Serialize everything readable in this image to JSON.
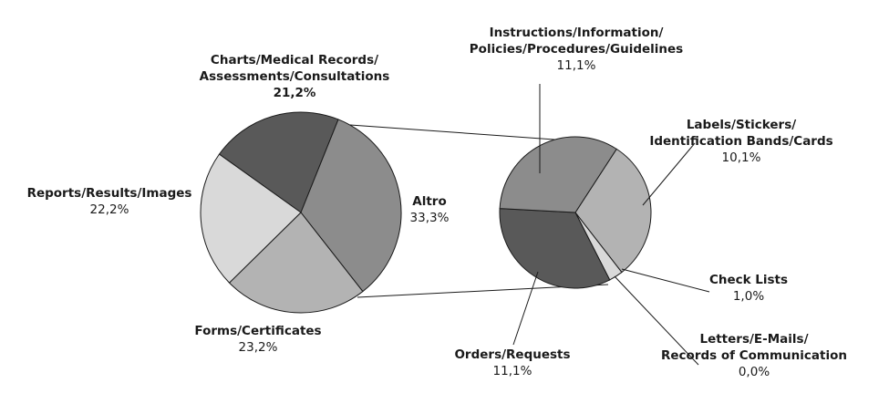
{
  "chart_data": [
    {
      "type": "pie",
      "title": "",
      "slices": [
        {
          "label_lines": [
            "Charts/Medical Records/",
            "Assessments/Consultations"
          ],
          "value_label": "21,2%",
          "value": 21.2,
          "color": "#595959"
        },
        {
          "label_lines": [
            "Altro"
          ],
          "value_label": "33,3%",
          "value": 33.3,
          "color": "#8c8c8c"
        },
        {
          "label_lines": [
            "Forms/Certificates"
          ],
          "value_label": "23,2%",
          "value": 23.2,
          "color": "#b3b3b3"
        },
        {
          "label_lines": [
            "Reports/Results/Images"
          ],
          "value_label": "22,2%",
          "value": 22.2,
          "color": "#d9d9d9"
        }
      ]
    },
    {
      "type": "pie",
      "title": "",
      "breakdown_of": "Altro",
      "slices": [
        {
          "label_lines": [
            "Labels/Stickers/",
            "Identification Bands/Cards"
          ],
          "value_label": "10,1%",
          "value": 10.1,
          "color": "#b3b3b3"
        },
        {
          "label_lines": [
            "Check Lists"
          ],
          "value_label": "1,0%",
          "value": 1.0,
          "color": "#d9d9d9"
        },
        {
          "label_lines": [
            "Letters/E-Mails/",
            "Records of Communication"
          ],
          "value_label": "0,0%",
          "value": 0.0,
          "color": "#ffffff"
        },
        {
          "label_lines": [
            "Orders/Requests"
          ],
          "value_label": "11,1%",
          "value": 11.1,
          "color": "#595959"
        },
        {
          "label_lines": [
            "Instructions/Information/",
            "Policies/Procedures/Guidelines"
          ],
          "value_label": "11,1%",
          "value": 11.1,
          "color": "#8c8c8c"
        }
      ]
    }
  ]
}
